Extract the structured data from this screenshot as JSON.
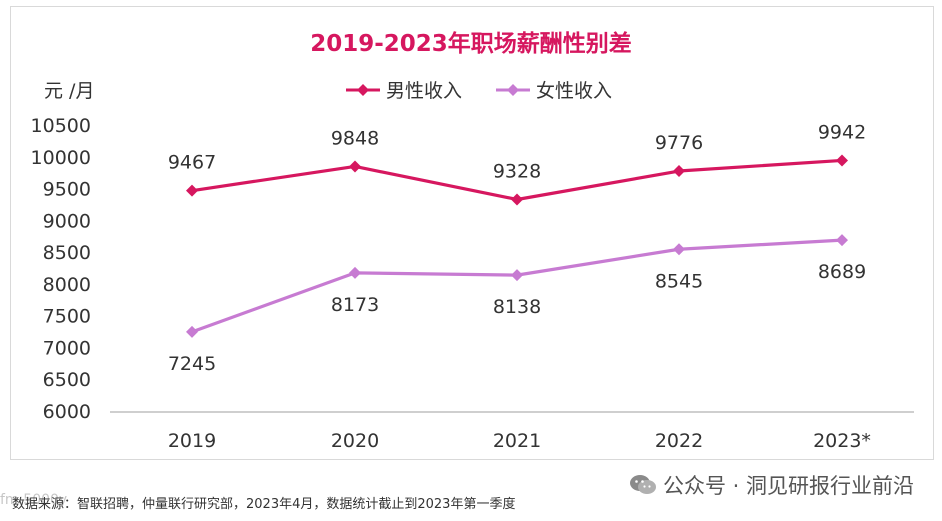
{
  "chart_data": {
    "type": "line",
    "title": "2019-2023年职场薪酬性别差",
    "ylabel": "元 /月",
    "xlabel": "",
    "categories": [
      "2019",
      "2020",
      "2021",
      "2022",
      "2023*"
    ],
    "ylim": [
      6000,
      10500
    ],
    "yticks": [
      "10500",
      "10000",
      "9500",
      "9000",
      "8500",
      "8000",
      "7500",
      "7000",
      "6500",
      "6000"
    ],
    "ytick_values": [
      10500,
      10000,
      9500,
      9000,
      8500,
      8000,
      7500,
      7000,
      6500,
      6000
    ],
    "legend_position": "top-center",
    "grid": false,
    "series": [
      {
        "name": "男性收入",
        "values": [
          9467,
          9848,
          9328,
          9776,
          9942
        ],
        "labels": [
          "9467",
          "9848",
          "9328",
          "9776",
          "9942"
        ],
        "color": "#d6175f",
        "label_side": "above"
      },
      {
        "name": "女性收入",
        "values": [
          7245,
          8173,
          8138,
          8545,
          8689
        ],
        "labels": [
          "7245",
          "8173",
          "8138",
          "8545",
          "8689"
        ],
        "color": "#c77bd2",
        "label_side": "below"
      }
    ]
  },
  "source_text": "数据来源：智联招聘，仲量联行研究部，2023年4月，数据统计截止到2023年第一季度",
  "watermark": {
    "text": "公众号 · 洞见研报行业前沿",
    "icon": "wechat-icon",
    "mark_text": "fm:5000y"
  }
}
